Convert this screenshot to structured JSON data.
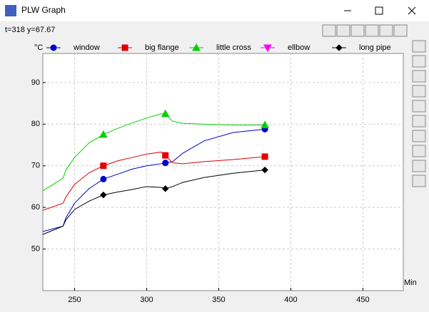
{
  "window": {
    "title": "PLW Graph",
    "status": "t=318 y=67.67"
  },
  "chart_data": {
    "type": "line",
    "y_label": "°C",
    "x_label": "Min",
    "x": [
      228,
      242,
      244,
      250,
      260,
      270,
      280,
      290,
      300,
      310,
      313,
      318,
      325,
      340,
      360,
      382
    ],
    "series": [
      {
        "name": "window",
        "color": "#0000cc",
        "marker": "circle",
        "values": [
          54.2,
          55.5,
          57.5,
          61,
          64.5,
          66.8,
          68,
          69.2,
          70,
          70.5,
          70.7,
          71,
          73,
          76,
          78,
          78.8
        ]
      },
      {
        "name": "big flange",
        "color": "#e00000",
        "marker": "square",
        "values": [
          59.3,
          61,
          62.5,
          65.5,
          68.3,
          70,
          71.2,
          72,
          72.8,
          73.3,
          72.5,
          70.7,
          70.5,
          71,
          71.5,
          72.2
        ]
      },
      {
        "name": "little cross",
        "color": "#00d000",
        "marker": "triangle-up",
        "values": [
          64,
          67,
          69,
          72,
          75.5,
          77.5,
          79,
          80.3,
          81.5,
          82.5,
          82.5,
          80.7,
          80.2,
          80,
          79.8,
          79.8
        ]
      },
      {
        "name": "ellbow",
        "color": "#ff00ff",
        "marker": "triangle-down",
        "values": [
          null,
          null,
          null,
          null,
          null,
          null,
          null,
          null,
          null,
          null,
          null,
          null,
          null,
          null,
          null,
          null
        ]
      },
      {
        "name": "long pipe",
        "color": "#000000",
        "marker": "diamond",
        "values": [
          53.5,
          55.5,
          57,
          59.5,
          61.5,
          63,
          63.7,
          64.3,
          65,
          64.8,
          64.5,
          65,
          66,
          67.2,
          68.2,
          69
        ]
      }
    ],
    "xlim": [
      228,
      478
    ],
    "ylim": [
      40,
      97
    ],
    "xticks": [
      250,
      300,
      350,
      400,
      450
    ],
    "yticks": [
      50,
      60,
      70,
      80,
      90
    ],
    "grid": true
  }
}
